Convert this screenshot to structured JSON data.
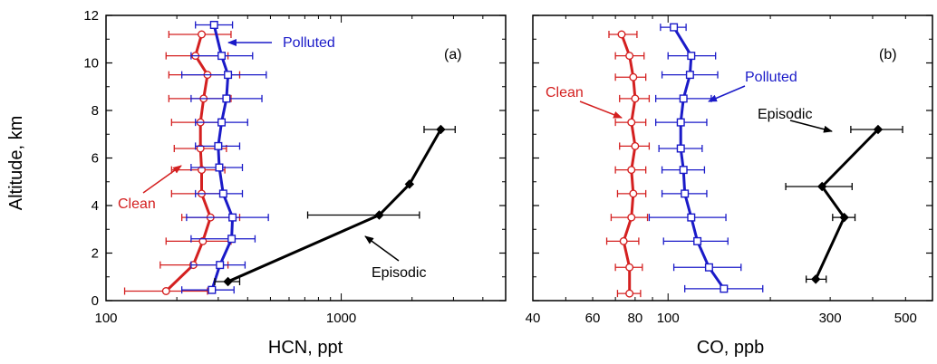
{
  "figure": {
    "ylabel": "Altitude, km"
  },
  "colors": {
    "clean": "#d42020",
    "polluted": "#1a1ac8",
    "episodic": "#000000"
  },
  "chart_data": [
    {
      "type": "line",
      "panel_label": "(a)",
      "xlabel": "HCN, ppt",
      "ylabel": "Altitude, km",
      "xscale": "log",
      "xlim": [
        100,
        5000
      ],
      "ylim": [
        0,
        12
      ],
      "x_ticks": [
        100,
        1000
      ],
      "x_tick_labels": [
        "100",
        "1000"
      ],
      "y_ticks": [
        0,
        2,
        4,
        6,
        8,
        10,
        12
      ],
      "y_tick_labels": [
        "0",
        "2",
        "4",
        "6",
        "8",
        "10",
        "12"
      ],
      "series": [
        {
          "name": "Clean",
          "marker": "circle",
          "color_key": "clean",
          "points": [
            {
              "y": 0.4,
              "x": 180,
              "xmin": 120,
              "xmax": 270
            },
            {
              "y": 1.5,
              "x": 235,
              "xmin": 170,
              "xmax": 330
            },
            {
              "y": 2.5,
              "x": 258,
              "xmin": 180,
              "xmax": 340
            },
            {
              "y": 3.5,
              "x": 278,
              "xmin": 210,
              "xmax": 370
            },
            {
              "y": 4.5,
              "x": 255,
              "xmin": 190,
              "xmax": 320
            },
            {
              "y": 5.5,
              "x": 255,
              "xmin": 190,
              "xmax": 320
            },
            {
              "y": 6.4,
              "x": 252,
              "xmin": 195,
              "xmax": 325
            },
            {
              "y": 7.5,
              "x": 252,
              "xmin": 190,
              "xmax": 320
            },
            {
              "y": 8.5,
              "x": 260,
              "xmin": 185,
              "xmax": 340
            },
            {
              "y": 9.5,
              "x": 270,
              "xmin": 185,
              "xmax": 370
            },
            {
              "y": 10.3,
              "x": 240,
              "xmin": 180,
              "xmax": 330
            },
            {
              "y": 11.2,
              "x": 255,
              "xmin": 185,
              "xmax": 340
            }
          ]
        },
        {
          "name": "Polluted",
          "marker": "square",
          "color_key": "polluted",
          "points": [
            {
              "y": 0.45,
              "x": 282,
              "xmin": 210,
              "xmax": 350
            },
            {
              "y": 1.5,
              "x": 305,
              "xmin": 230,
              "xmax": 390
            },
            {
              "y": 2.6,
              "x": 342,
              "xmin": 230,
              "xmax": 430
            },
            {
              "y": 3.5,
              "x": 345,
              "xmin": 220,
              "xmax": 490
            },
            {
              "y": 4.5,
              "x": 315,
              "xmin": 240,
              "xmax": 380
            },
            {
              "y": 5.6,
              "x": 303,
              "xmin": 230,
              "xmax": 380
            },
            {
              "y": 6.5,
              "x": 300,
              "xmin": 240,
              "xmax": 370
            },
            {
              "y": 7.5,
              "x": 310,
              "xmin": 240,
              "xmax": 400
            },
            {
              "y": 8.5,
              "x": 325,
              "xmin": 230,
              "xmax": 460
            },
            {
              "y": 9.5,
              "x": 330,
              "xmin": 210,
              "xmax": 480
            },
            {
              "y": 10.3,
              "x": 310,
              "xmin": 230,
              "xmax": 420
            },
            {
              "y": 11.6,
              "x": 288,
              "xmin": 240,
              "xmax": 345
            }
          ]
        },
        {
          "name": "Episodic",
          "marker": "diamond",
          "color_key": "episodic",
          "points": [
            {
              "y": 0.8,
              "x": 330,
              "xmin": 290,
              "xmax": 370
            },
            {
              "y": 3.6,
              "x": 1450,
              "xmin": 720,
              "xmax": 2150
            },
            {
              "y": 4.9,
              "x": 1950,
              "xmin": 1950,
              "xmax": 1950
            },
            {
              "y": 7.2,
              "x": 2650,
              "xmin": 2250,
              "xmax": 3050
            }
          ]
        }
      ],
      "annotations": [
        "Polluted",
        "Clean",
        "Episodic"
      ]
    },
    {
      "type": "line",
      "panel_label": "(b)",
      "xlabel": "CO, ppb",
      "ylabel": "",
      "xscale": "log",
      "xlim": [
        40,
        600
      ],
      "ylim": [
        0,
        12
      ],
      "x_ticks": [
        40,
        60,
        80,
        100,
        300,
        500
      ],
      "x_tick_labels": [
        "40",
        "60",
        "80",
        "100",
        "300",
        "500"
      ],
      "y_ticks": [
        0,
        2,
        4,
        6,
        8,
        10,
        12
      ],
      "y_tick_labels": [],
      "series": [
        {
          "name": "Clean",
          "marker": "circle",
          "color_key": "clean",
          "points": [
            {
              "y": 0.3,
              "x": 77,
              "xmin": 71,
              "xmax": 83
            },
            {
              "y": 1.4,
              "x": 77,
              "xmin": 70,
              "xmax": 84
            },
            {
              "y": 2.5,
              "x": 74,
              "xmin": 66,
              "xmax": 82
            },
            {
              "y": 3.5,
              "x": 78,
              "xmin": 68,
              "xmax": 87
            },
            {
              "y": 4.5,
              "x": 79,
              "xmin": 71,
              "xmax": 86
            },
            {
              "y": 5.5,
              "x": 78,
              "xmin": 70,
              "xmax": 86
            },
            {
              "y": 6.5,
              "x": 80,
              "xmin": 72,
              "xmax": 88
            },
            {
              "y": 7.5,
              "x": 78,
              "xmin": 70,
              "xmax": 86
            },
            {
              "y": 8.5,
              "x": 80,
              "xmin": 72,
              "xmax": 88
            },
            {
              "y": 9.4,
              "x": 79,
              "xmin": 70,
              "xmax": 86
            },
            {
              "y": 10.3,
              "x": 77,
              "xmin": 70,
              "xmax": 85
            },
            {
              "y": 11.2,
              "x": 73,
              "xmin": 67,
              "xmax": 81
            }
          ]
        },
        {
          "name": "Polluted",
          "marker": "square",
          "color_key": "polluted",
          "points": [
            {
              "y": 0.5,
              "x": 146,
              "xmin": 112,
              "xmax": 190
            },
            {
              "y": 1.4,
              "x": 132,
              "xmin": 104,
              "xmax": 164
            },
            {
              "y": 2.5,
              "x": 122,
              "xmin": 97,
              "xmax": 150
            },
            {
              "y": 3.5,
              "x": 117,
              "xmin": 88,
              "xmax": 148
            },
            {
              "y": 4.5,
              "x": 112,
              "xmin": 96,
              "xmax": 130
            },
            {
              "y": 5.5,
              "x": 111,
              "xmin": 96,
              "xmax": 128
            },
            {
              "y": 6.4,
              "x": 109,
              "xmin": 94,
              "xmax": 126
            },
            {
              "y": 7.5,
              "x": 109,
              "xmin": 92,
              "xmax": 130
            },
            {
              "y": 8.5,
              "x": 111,
              "xmin": 92,
              "xmax": 134
            },
            {
              "y": 9.5,
              "x": 116,
              "xmin": 96,
              "xmax": 140
            },
            {
              "y": 10.3,
              "x": 117,
              "xmin": 100,
              "xmax": 138
            },
            {
              "y": 11.5,
              "x": 104,
              "xmin": 95,
              "xmax": 113
            }
          ]
        },
        {
          "name": "Episodic",
          "marker": "diamond",
          "color_key": "episodic",
          "points": [
            {
              "y": 0.9,
              "x": 272,
              "xmin": 255,
              "xmax": 292
            },
            {
              "y": 3.5,
              "x": 330,
              "xmin": 305,
              "xmax": 355
            },
            {
              "y": 4.8,
              "x": 284,
              "xmin": 222,
              "xmax": 348
            },
            {
              "y": 7.2,
              "x": 415,
              "xmin": 345,
              "xmax": 490
            }
          ]
        }
      ],
      "annotations": [
        "Clean",
        "Polluted",
        "Episodic"
      ]
    }
  ]
}
